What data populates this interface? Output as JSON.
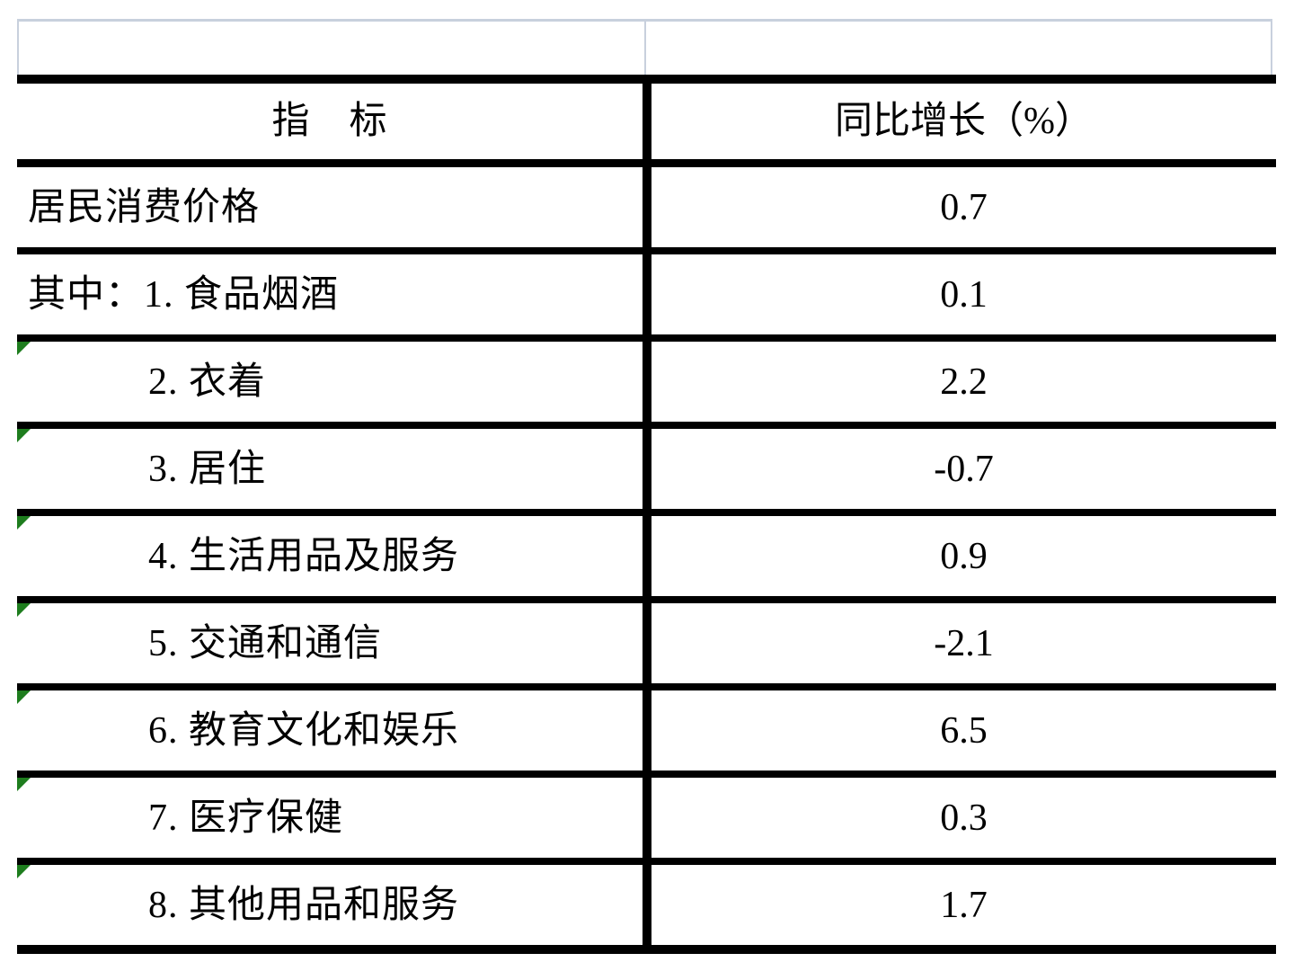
{
  "table": {
    "header": {
      "indicator_label": "指　标",
      "growth_label": "同比增长（%）"
    },
    "rows": [
      {
        "label": "居民消费价格",
        "value": "0.7",
        "corner_marker": false
      },
      {
        "label": "其中：1. 食品烟酒",
        "value": "0.1",
        "corner_marker": false
      },
      {
        "label": "2. 衣着",
        "value": "2.2",
        "corner_marker": true
      },
      {
        "label": "3. 居住",
        "value": "-0.7",
        "corner_marker": true
      },
      {
        "label": "4. 生活用品及服务",
        "value": "0.9",
        "corner_marker": true
      },
      {
        "label": "5. 交通和通信",
        "value": "-2.1",
        "corner_marker": true
      },
      {
        "label": "6. 教育文化和娱乐",
        "value": "6.5",
        "corner_marker": true
      },
      {
        "label": "7. 医疗保健",
        "value": "0.3",
        "corner_marker": true
      },
      {
        "label": "8. 其他用品和服务",
        "value": "1.7",
        "corner_marker": true
      }
    ],
    "colors": {
      "table_border": "#000000",
      "gridline_light": "#c8d0dd",
      "marker_green": "#1e7d1e",
      "background": "#ffffff"
    }
  }
}
